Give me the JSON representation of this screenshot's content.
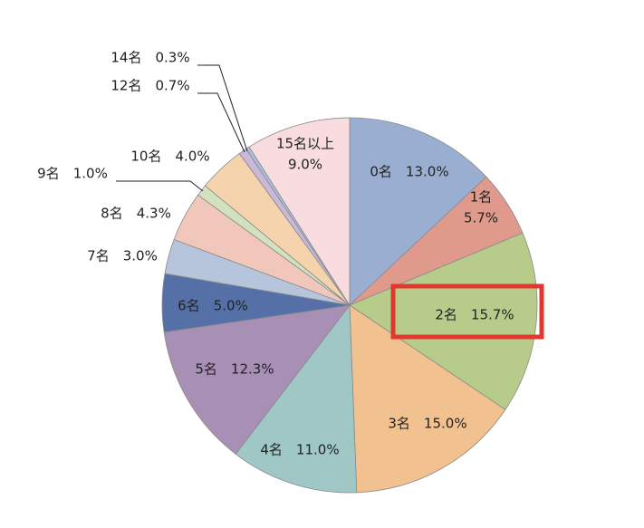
{
  "chart_data": {
    "type": "pie",
    "title": "",
    "start_angle_deg": 0,
    "direction": "clockwise",
    "slices": [
      {
        "label": "0名",
        "value": 13.0,
        "value_text": "13.0%",
        "color": "#9aaed2"
      },
      {
        "label": "1名",
        "value": 5.7,
        "value_text": "5.7%",
        "color": "#e09a8c"
      },
      {
        "label": "2名",
        "value": 15.7,
        "value_text": "15.7%",
        "color": "#b7cc8a",
        "highlighted": true
      },
      {
        "label": "3名",
        "value": 15.0,
        "value_text": "15.0%",
        "color": "#f1c28f"
      },
      {
        "label": "4名",
        "value": 11.0,
        "value_text": "11.0%",
        "color": "#9ec7c6"
      },
      {
        "label": "5名",
        "value": 12.3,
        "value_text": "12.3%",
        "color": "#a78fb6"
      },
      {
        "label": "6名",
        "value": 5.0,
        "value_text": "5.0%",
        "color": "#5470a6"
      },
      {
        "label": "7名",
        "value": 3.0,
        "value_text": "3.0%",
        "color": "#b7c5dc"
      },
      {
        "label": "8名",
        "value": 4.3,
        "value_text": "4.3%",
        "color": "#f1c7bc"
      },
      {
        "label": "9名",
        "value": 1.0,
        "value_text": "1.0%",
        "color": "#d2e2bf"
      },
      {
        "label": "10名",
        "value": 4.0,
        "value_text": "4.0%",
        "color": "#f5d4ad"
      },
      {
        "label": "12名",
        "value": 0.7,
        "value_text": "0.7%",
        "color": "#cab8d8"
      },
      {
        "label": "14名",
        "value": 0.3,
        "value_text": "0.3%",
        "color": "#a9c0de"
      },
      {
        "label": "15名以上",
        "value": 9.0,
        "value_text": "9.0%",
        "color": "#f8dcdf"
      }
    ],
    "highlight_color": "#e0382e",
    "legend": "none"
  }
}
